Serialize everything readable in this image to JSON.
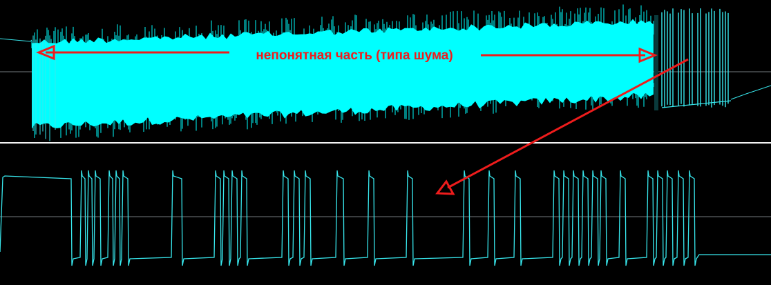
{
  "annotation": {
    "text": "непонятная часть (типа шума)"
  },
  "colors": {
    "background": "#000000",
    "trace": "#38e8ee",
    "noise_fill": "#00ffff",
    "gridline": "#9aa3a8",
    "divider": "#f2f2f2",
    "annotation": "#ee1c1c"
  },
  "panels": [
    {
      "name": "top-trace",
      "description_shown": "noisy burst followed by pulses"
    },
    {
      "name": "bottom-trace",
      "description_shown": "decoded digital pulse train"
    }
  ]
}
